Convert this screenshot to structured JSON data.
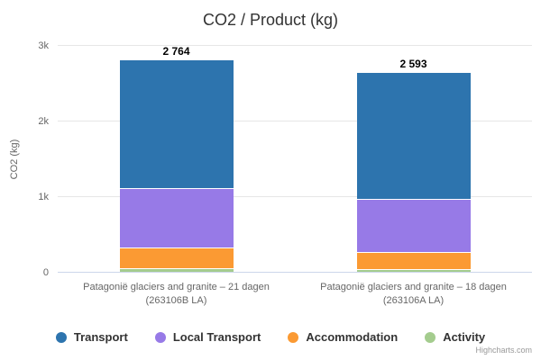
{
  "title": "CO2 / Product (kg)",
  "credits": "Highcharts.com",
  "chart_data": {
    "type": "bar",
    "stacked": true,
    "title": "CO2 / Product (kg)",
    "xlabel": "",
    "ylabel": "CO2 (kg)",
    "ylim": [
      0,
      3000
    ],
    "grid": true,
    "legend_position": "bottom",
    "yticks": [
      {
        "value": 0,
        "label": "0"
      },
      {
        "value": 1000,
        "label": "1k"
      },
      {
        "value": 2000,
        "label": "2k"
      },
      {
        "value": 3000,
        "label": "3k"
      }
    ],
    "categories": [
      "Patagonië glaciers and granite – 21 dagen (263106B LA)",
      "Patagonië glaciers and granite – 18 dagen (263106A LA)"
    ],
    "category_label_lines": [
      [
        "Patagonië glaciers and granite – 21 dagen",
        "(263106B LA)"
      ],
      [
        "Patagonië glaciers and granite – 18 dagen",
        "(263106A LA)"
      ]
    ],
    "series": [
      {
        "name": "Transport",
        "color": "#2d74ae",
        "values": [
          1693,
          1664
        ]
      },
      {
        "name": "Local Transport",
        "color": "#977ae7",
        "values": [
          773,
          691
        ]
      },
      {
        "name": "Accommodation",
        "color": "#fb9a33",
        "values": [
          262,
          214
        ]
      },
      {
        "name": "Activity",
        "color": "#a4cc8e",
        "values": [
          36,
          24
        ]
      }
    ],
    "stack_totals": [
      "2 764",
      "2 593"
    ]
  }
}
